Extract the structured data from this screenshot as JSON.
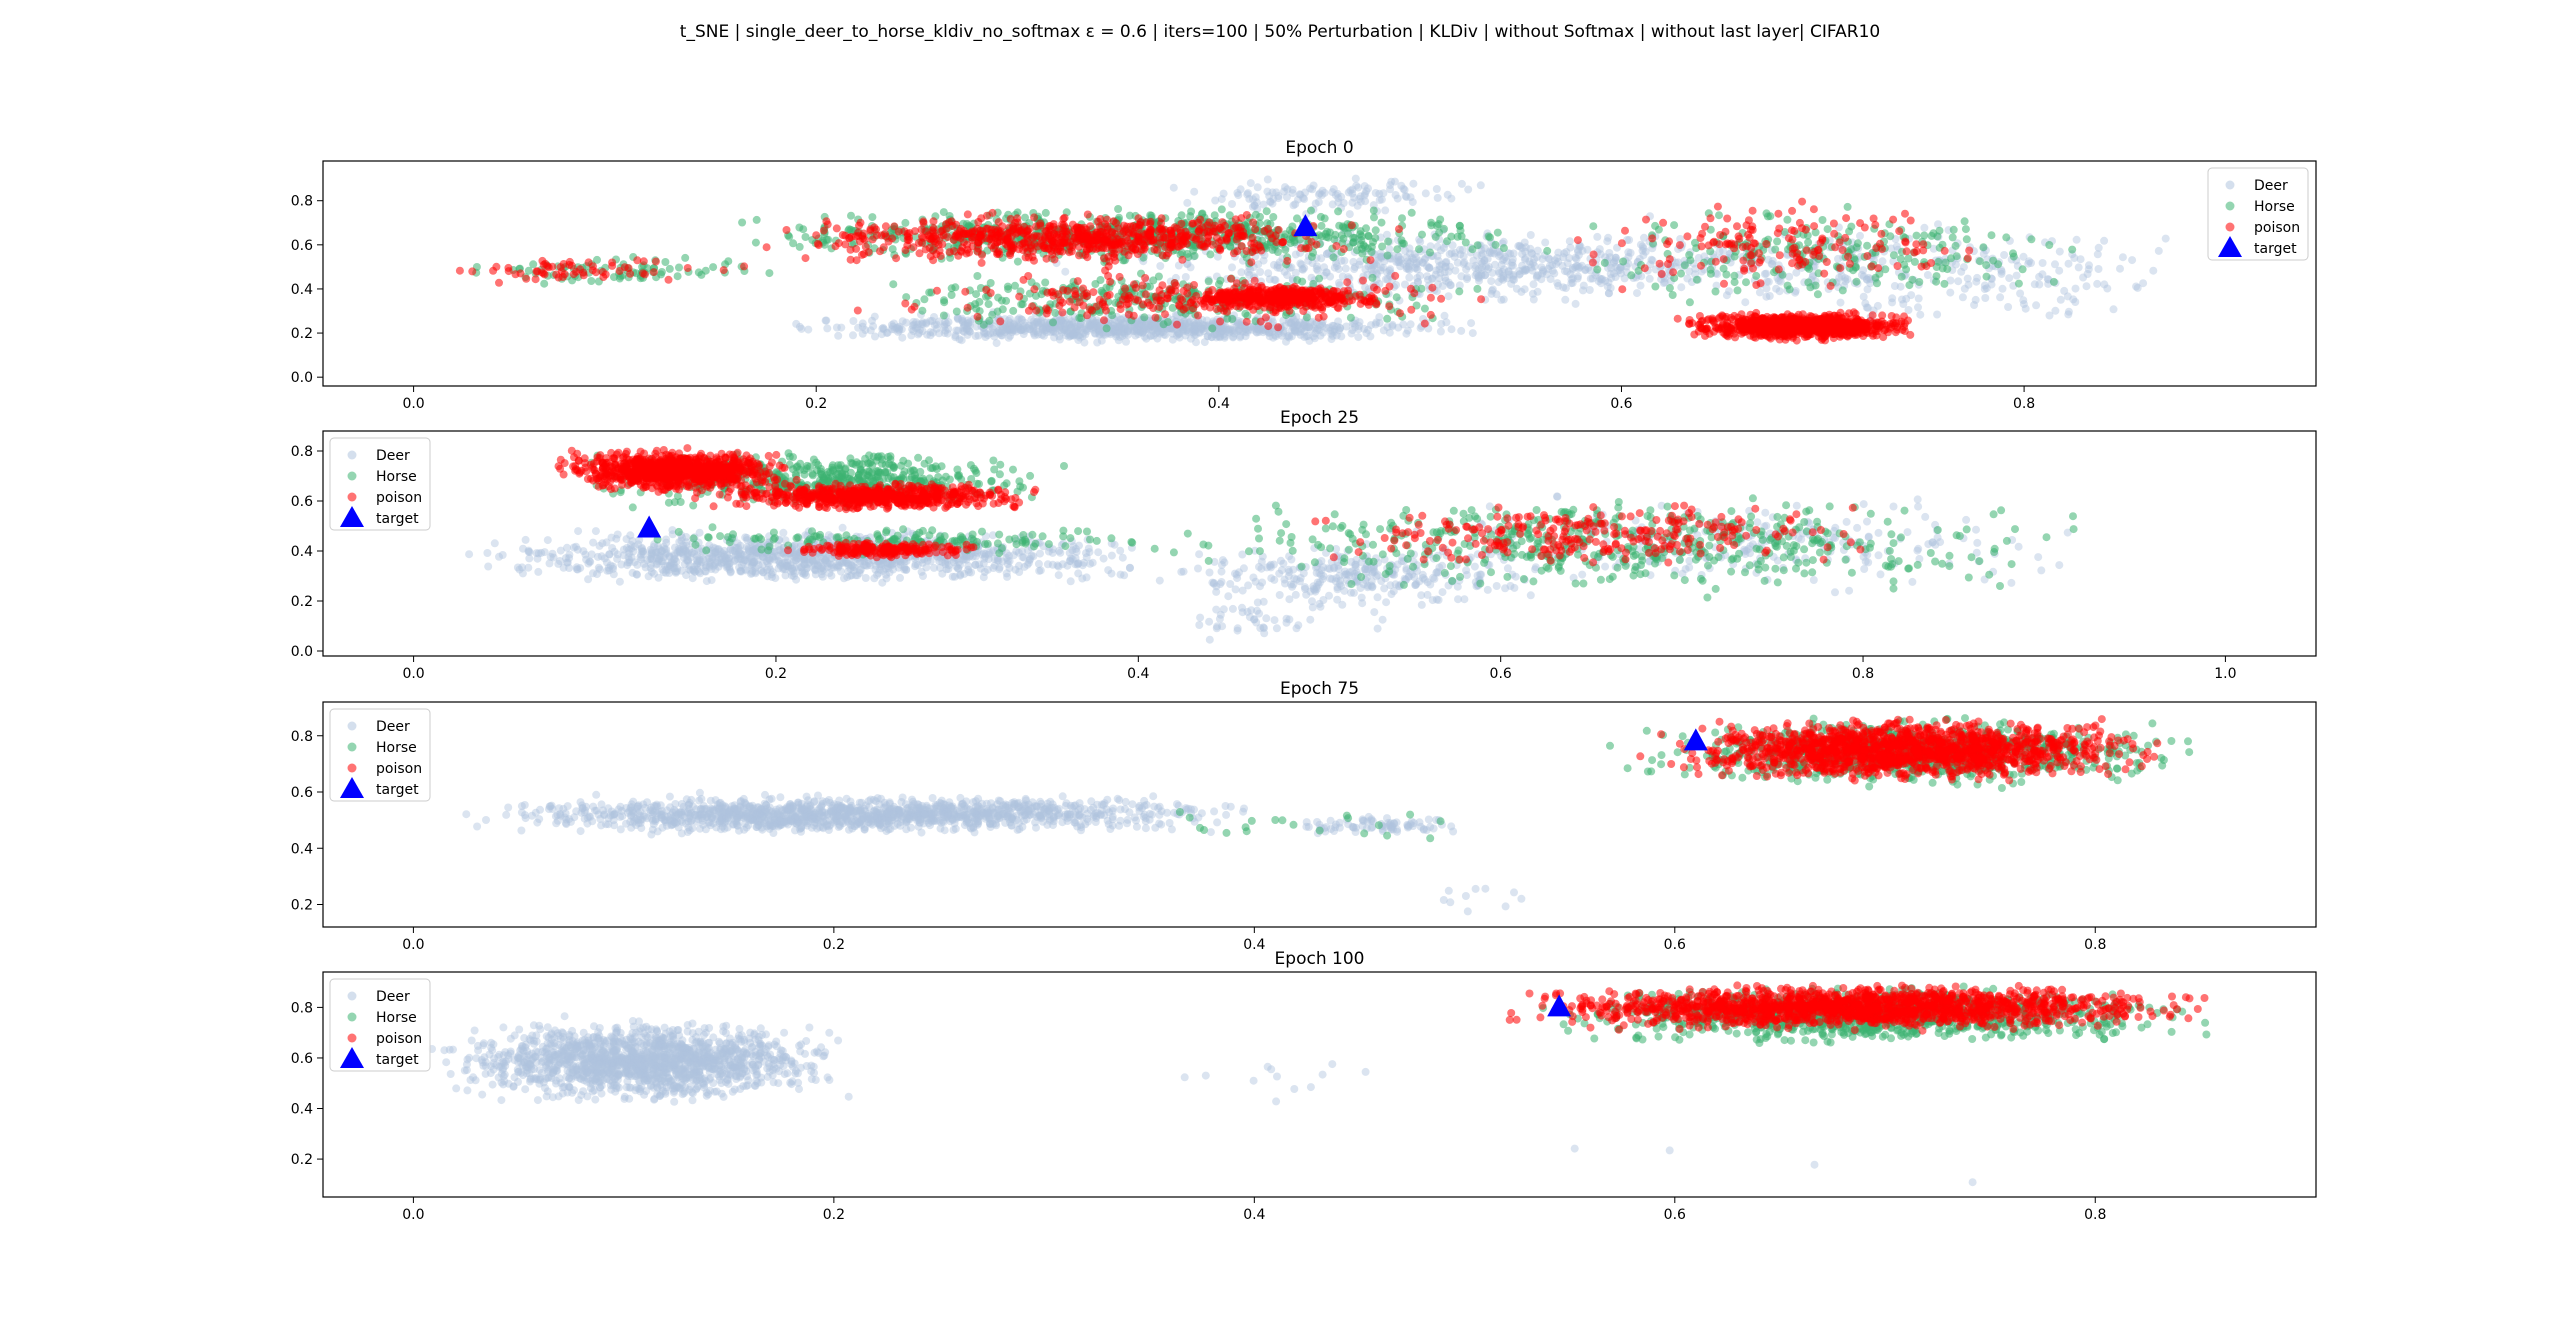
{
  "figure": {
    "title": "t_SNE | single_deer_to_horse_kldiv_no_softmax ε = 0.6 | iters=100 | 50% Perturbation | KLDiv | without Softmax | without last layer| CIFAR10"
  },
  "colors": {
    "deer": "#b0c4de",
    "horse": "#3cb371",
    "poison": "#ff0000",
    "target": "#0000ff"
  },
  "chart_data": [
    {
      "type": "scatter",
      "title": "Epoch 0",
      "xlim": [
        -0.045,
        0.945
      ],
      "ylim": [
        -0.04,
        0.98
      ],
      "xticks": [
        "0.0",
        "0.2",
        "0.4",
        "0.6",
        "0.8"
      ],
      "xtick_values": [
        0.0,
        0.2,
        0.4,
        0.6,
        0.8
      ],
      "yticks": [
        "0.0",
        "0.2",
        "0.4",
        "0.6",
        "0.8"
      ],
      "ytick_values": [
        0.0,
        0.2,
        0.4,
        0.6,
        0.8
      ],
      "legend": {
        "position": "upper-right",
        "entries": [
          "Deer",
          "Horse",
          "poison",
          "target"
        ]
      },
      "target": {
        "x": 0.443,
        "y": 0.68
      },
      "clusters": {
        "deer": [
          {
            "x": [
              0.16,
              0.55
            ],
            "y": [
              0.15,
              0.3
            ],
            "n": 900
          },
          {
            "x": [
              0.3,
              0.75
            ],
            "y": [
              0.3,
              0.7
            ],
            "n": 700
          },
          {
            "x": [
              0.6,
              0.9
            ],
            "y": [
              0.2,
              0.75
            ],
            "n": 250
          },
          {
            "x": [
              0.35,
              0.55
            ],
            "y": [
              0.72,
              0.93
            ],
            "n": 120
          }
        ],
        "horse": [
          {
            "x": [
              0.0,
              0.2
            ],
            "y": [
              0.4,
              0.56
            ],
            "n": 80
          },
          {
            "x": [
              0.13,
              0.58
            ],
            "y": [
              0.5,
              0.78
            ],
            "n": 800
          },
          {
            "x": [
              0.2,
              0.55
            ],
            "y": [
              0.2,
              0.5
            ],
            "n": 300
          },
          {
            "x": [
              0.55,
              0.85
            ],
            "y": [
              0.3,
              0.8
            ],
            "n": 220
          }
        ],
        "poison": [
          {
            "x": [
              0.0,
              0.17
            ],
            "y": [
              0.42,
              0.55
            ],
            "n": 60
          },
          {
            "x": [
              0.15,
              0.5
            ],
            "y": [
              0.5,
              0.76
            ],
            "n": 700
          },
          {
            "x": [
              0.37,
              0.49
            ],
            "y": [
              0.3,
              0.42
            ],
            "n": 400
          },
          {
            "x": [
              0.2,
              0.55
            ],
            "y": [
              0.2,
              0.5
            ],
            "n": 200
          },
          {
            "x": [
              0.62,
              0.76
            ],
            "y": [
              0.16,
              0.3
            ],
            "n": 900
          },
          {
            "x": [
              0.55,
              0.82
            ],
            "y": [
              0.35,
              0.85
            ],
            "n": 150
          }
        ]
      }
    },
    {
      "type": "scatter",
      "title": "Epoch 25",
      "xlim": [
        -0.05,
        1.05
      ],
      "ylim": [
        -0.02,
        0.88
      ],
      "xticks": [
        "0.0",
        "0.2",
        "0.4",
        "0.6",
        "0.8",
        "1.0"
      ],
      "xtick_values": [
        0.0,
        0.2,
        0.4,
        0.6,
        0.8,
        1.0
      ],
      "yticks": [
        "0.0",
        "0.2",
        "0.4",
        "0.6",
        "0.8"
      ],
      "ytick_values": [
        0.0,
        0.2,
        0.4,
        0.6,
        0.8
      ],
      "legend": {
        "position": "upper-left",
        "entries": [
          "Deer",
          "Horse",
          "poison",
          "target"
        ]
      },
      "target": {
        "x": 0.13,
        "y": 0.49
      },
      "clusters": {
        "deer": [
          {
            "x": [
              0.0,
              0.45
            ],
            "y": [
              0.25,
              0.5
            ],
            "n": 1100
          },
          {
            "x": [
              0.4,
              0.65
            ],
            "y": [
              0.15,
              0.45
            ],
            "n": 300
          },
          {
            "x": [
              0.5,
              0.95
            ],
            "y": [
              0.2,
              0.65
            ],
            "n": 250
          },
          {
            "x": [
              0.4,
              0.55
            ],
            "y": [
              0.02,
              0.2
            ],
            "n": 40
          }
        ],
        "horse": [
          {
            "x": [
              0.07,
              0.38
            ],
            "y": [
              0.55,
              0.82
            ],
            "n": 500
          },
          {
            "x": [
              0.1,
              0.45
            ],
            "y": [
              0.38,
              0.5
            ],
            "n": 150
          },
          {
            "x": [
              0.38,
              0.95
            ],
            "y": [
              0.2,
              0.65
            ],
            "n": 500
          }
        ],
        "poison": [
          {
            "x": [
              0.07,
              0.22
            ],
            "y": [
              0.62,
              0.82
            ],
            "n": 900
          },
          {
            "x": [
              0.15,
              0.36
            ],
            "y": [
              0.55,
              0.68
            ],
            "n": 600
          },
          {
            "x": [
              0.2,
              0.32
            ],
            "y": [
              0.37,
              0.44
            ],
            "n": 200
          },
          {
            "x": [
              0.45,
              0.85
            ],
            "y": [
              0.3,
              0.62
            ],
            "n": 250
          }
        ]
      }
    },
    {
      "type": "scatter",
      "title": "Epoch 75",
      "xlim": [
        -0.043,
        0.905
      ],
      "ylim": [
        0.12,
        0.92
      ],
      "xticks": [
        "0.0",
        "0.2",
        "0.4",
        "0.6",
        "0.8"
      ],
      "xtick_values": [
        0.0,
        0.2,
        0.4,
        0.6,
        0.8
      ],
      "yticks": [
        "0.2",
        "0.4",
        "0.6",
        "0.8"
      ],
      "ytick_values": [
        0.2,
        0.4,
        0.6,
        0.8
      ],
      "legend": {
        "position": "upper-left",
        "entries": [
          "Deer",
          "Horse",
          "poison",
          "target"
        ]
      },
      "target": {
        "x": 0.61,
        "y": 0.78
      },
      "clusters": {
        "deer": [
          {
            "x": [
              0.0,
              0.42
            ],
            "y": [
              0.44,
              0.6
            ],
            "n": 1400
          },
          {
            "x": [
              0.4,
              0.52
            ],
            "y": [
              0.44,
              0.52
            ],
            "n": 80
          },
          {
            "x": [
              0.45,
              0.55
            ],
            "y": [
              0.14,
              0.3
            ],
            "n": 10
          }
        ],
        "horse": [
          {
            "x": [
              0.56,
              0.86
            ],
            "y": [
              0.6,
              0.88
            ],
            "n": 900
          },
          {
            "x": [
              0.3,
              0.55
            ],
            "y": [
              0.4,
              0.55
            ],
            "n": 20
          }
        ],
        "poison": [
          {
            "x": [
              0.57,
              0.85
            ],
            "y": [
              0.62,
              0.88
            ],
            "n": 1400
          }
        ]
      }
    },
    {
      "type": "scatter",
      "title": "Epoch 100",
      "xlim": [
        -0.043,
        0.905
      ],
      "ylim": [
        0.05,
        0.94
      ],
      "xticks": [
        "0.0",
        "0.2",
        "0.4",
        "0.6",
        "0.8"
      ],
      "xtick_values": [
        0.0,
        0.2,
        0.4,
        0.6,
        0.8
      ],
      "yticks": [
        "0.2",
        "0.4",
        "0.6",
        "0.8"
      ],
      "ytick_values": [
        0.2,
        0.4,
        0.6,
        0.8
      ],
      "legend": {
        "position": "upper-left",
        "entries": [
          "Deer",
          "Horse",
          "poison",
          "target"
        ]
      },
      "target": {
        "x": 0.545,
        "y": 0.8
      },
      "clusters": {
        "deer": [
          {
            "x": [
              0.0,
              0.22
            ],
            "y": [
              0.4,
              0.78
            ],
            "n": 1500
          },
          {
            "x": [
              0.35,
              0.47
            ],
            "y": [
              0.42,
              0.6
            ],
            "n": 12
          },
          {
            "x": [
              0.45,
              0.83
            ],
            "y": [
              0.08,
              0.3
            ],
            "n": 4
          }
        ],
        "horse": [
          {
            "x": [
              0.51,
              0.87
            ],
            "y": [
              0.64,
              0.9
            ],
            "n": 1000
          }
        ],
        "poison": [
          {
            "x": [
              0.51,
              0.87
            ],
            "y": [
              0.7,
              0.9
            ],
            "n": 1500
          }
        ]
      }
    }
  ]
}
